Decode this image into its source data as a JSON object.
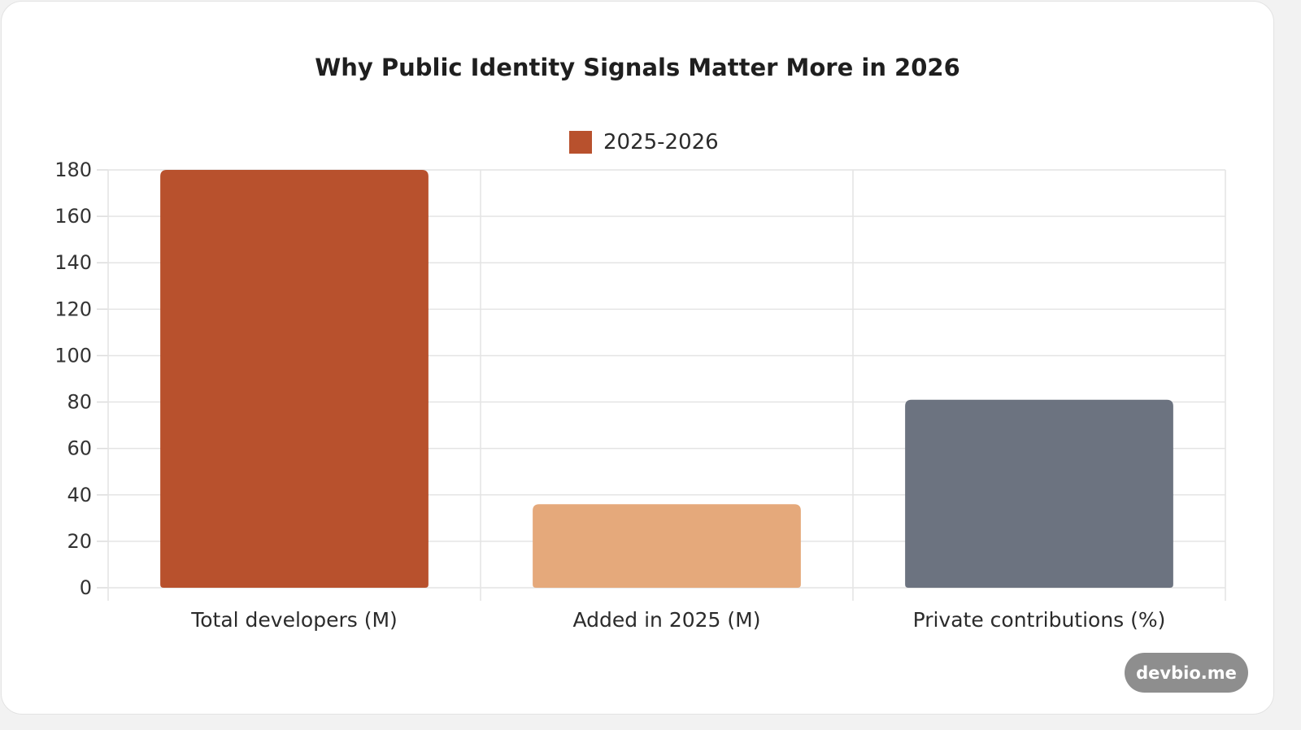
{
  "chart_data": {
    "type": "bar",
    "title": "Why Public Identity Signals Matter More in 2026",
    "categories": [
      "Total developers (M)",
      "Added in 2025 (M)",
      "Private contributions (%)"
    ],
    "series": [
      {
        "name": "2025-2026",
        "values": [
          180,
          36,
          81
        ]
      }
    ],
    "bar_colors": [
      "#b8512d",
      "#e5a97b",
      "#6c7380"
    ],
    "ylim": [
      0,
      180
    ],
    "yticks": [
      "0",
      "20",
      "40",
      "60",
      "80",
      "100",
      "120",
      "140",
      "160",
      "180"
    ],
    "grid": true,
    "legend_position": "top-center",
    "legend_color": "#b8512d"
  },
  "watermark": "devbio.me"
}
